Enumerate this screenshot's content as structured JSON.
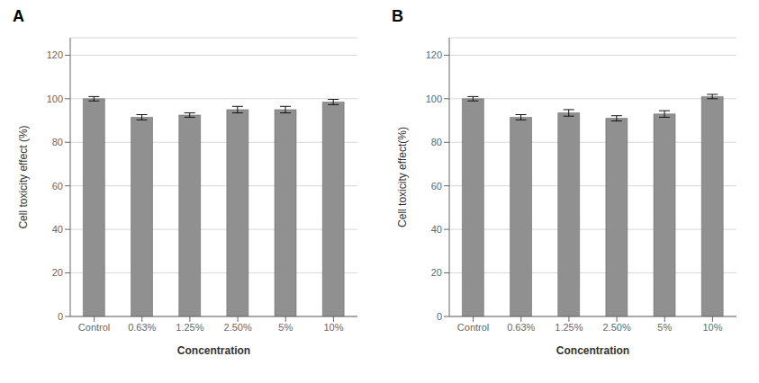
{
  "chart_data": [
    {
      "type": "bar",
      "title": "A",
      "x_label": "Concentration",
      "y_label": "Cell toxicity effect (%)",
      "categories": [
        "Control",
        "0.63%",
        "1.25%",
        "2.50%",
        "5%",
        "10%"
      ],
      "values": [
        100.0,
        91.5,
        92.5,
        95.0,
        95.0,
        98.5
      ],
      "errors": [
        1.0,
        1.2,
        1.0,
        1.5,
        1.5,
        1.2
      ],
      "color": "#909090",
      "ylim": [
        0,
        128
      ],
      "yticks": [
        0,
        20,
        40,
        60,
        80,
        100,
        120
      ],
      "grid": true
    },
    {
      "type": "bar",
      "title": "B",
      "x_label": "Concentration",
      "y_label": "Cell toxicity effect(%)",
      "categories": [
        "Control",
        "0.63%",
        "1.25%",
        "2.50%",
        "5%",
        "10%"
      ],
      "values": [
        100.0,
        91.5,
        93.5,
        91.0,
        93.0,
        101.0
      ],
      "errors": [
        1.0,
        1.2,
        1.5,
        1.2,
        1.5,
        1.0
      ],
      "color": "#909090",
      "ylim": [
        0,
        128
      ],
      "yticks": [
        0,
        20,
        40,
        60,
        80,
        100,
        120
      ],
      "grid": true
    }
  ]
}
